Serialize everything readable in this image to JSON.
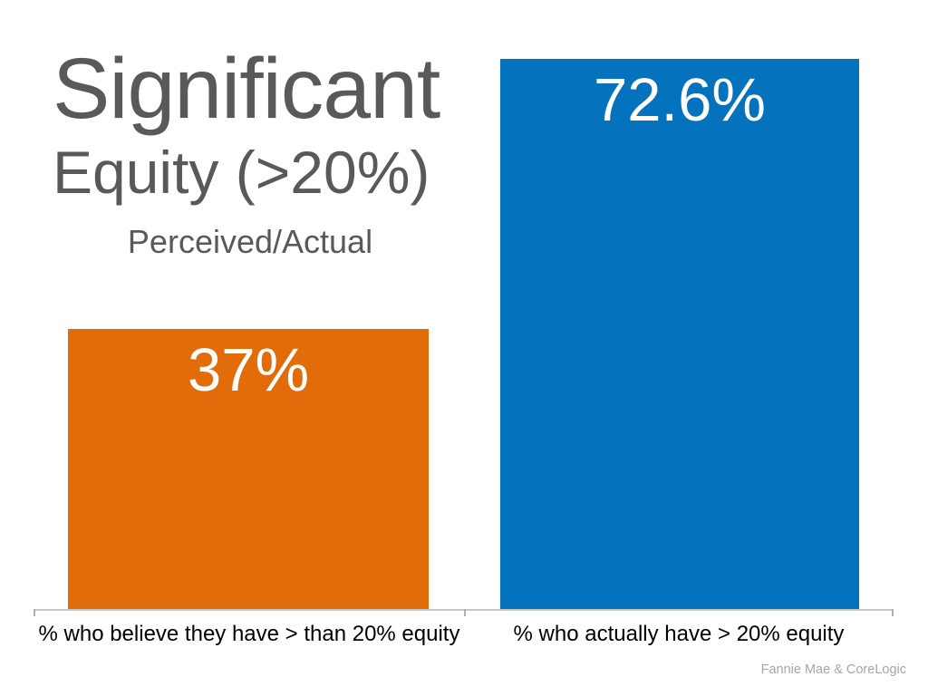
{
  "slide": {
    "title_line1": "Significant",
    "title_line2": "Equity (>20%)",
    "subtitle": "Perceived/Actual",
    "source": "Fannie Mae & CoreLogic"
  },
  "chart_data": {
    "type": "bar",
    "title": "Significant Equity (>20%)",
    "subtitle": "Perceived/Actual",
    "categories": [
      "% who believe they have > than 20% equity",
      "% who actually have > 20% equity"
    ],
    "values": [
      37,
      72.6
    ],
    "value_labels": [
      "37%",
      "72.6%"
    ],
    "series": [
      {
        "name": "Perceived",
        "value": 37,
        "label": "37%"
      },
      {
        "name": "Actual",
        "value": 72.6,
        "label": "72.6%"
      }
    ],
    "colors": [
      "#E26C09",
      "#0572BE"
    ],
    "bar_text_color": "#FFFFFF",
    "title_color": "#595959",
    "axis_color": "#C6C6C6",
    "label_color": "#000000",
    "source": "Fannie Mae & CoreLogic",
    "source_color": "#A6A6A6",
    "ylim": [
      0,
      72.6
    ],
    "grid": false,
    "legend": false,
    "orientation": "vertical"
  }
}
